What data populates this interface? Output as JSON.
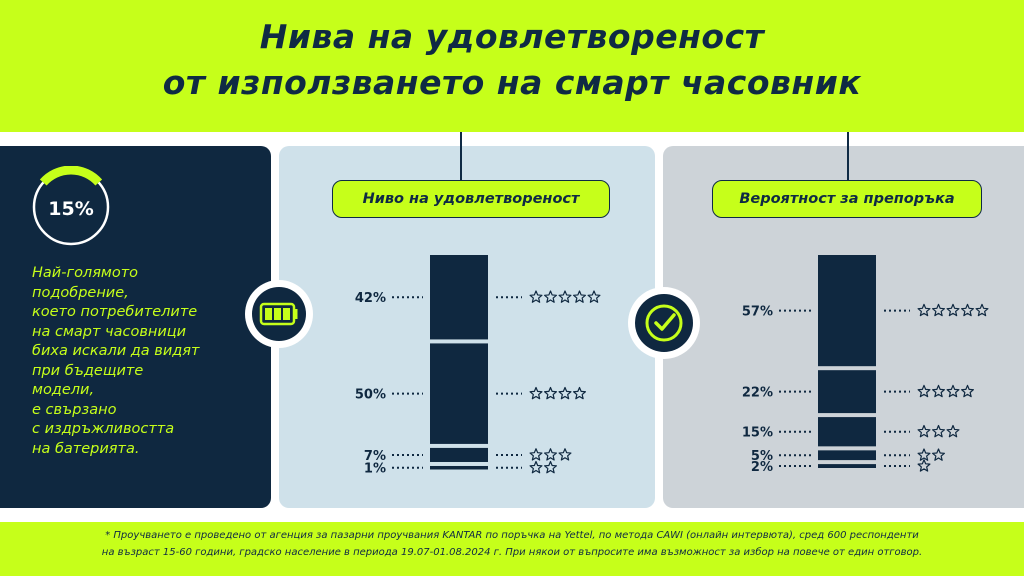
{
  "title": {
    "line1": "Нива на удовлетвореност",
    "line2": "от използването на смарт часовник"
  },
  "left": {
    "gauge_value": "15%",
    "gauge_fraction": 0.15,
    "text_lines": [
      "Най-голямото",
      "подобрение,",
      "което потребителите",
      "на смарт часовници",
      "биха искали да видят",
      "при бъдещите",
      "модели,",
      "е свързано",
      "с издръжливостта",
      "на батерията."
    ]
  },
  "colors": {
    "navy": "#0f2840",
    "lime": "#c6ff1a",
    "light_blue": "#cfe1ea",
    "light_gray": "#cdd3d8"
  },
  "icons": {
    "middle": "battery-full-icon",
    "right": "check-circle-icon",
    "rating": "star-outline-icon"
  },
  "chart_data": [
    {
      "type": "bar",
      "orientation": "stacked-vertical",
      "title": "Ниво на удовлетвореност",
      "categories": [
        "5 stars",
        "4 stars",
        "3 stars",
        "2 stars"
      ],
      "stars": [
        5,
        4,
        3,
        2
      ],
      "values": [
        42,
        50,
        7,
        1
      ],
      "labels": [
        "42%",
        "50%",
        "7%",
        "1%"
      ],
      "unit": "%"
    },
    {
      "type": "bar",
      "orientation": "stacked-vertical",
      "title": "Вероятност за препоръка",
      "categories": [
        "5 stars",
        "4 stars",
        "3 stars",
        "2 stars",
        "1 star"
      ],
      "stars": [
        5,
        4,
        3,
        2,
        1
      ],
      "values": [
        57,
        22,
        15,
        5,
        2
      ],
      "labels": [
        "57%",
        "22%",
        "15%",
        "5%",
        "2%"
      ],
      "unit": "%"
    }
  ],
  "footnote": {
    "line1": "* Проучването е проведено от агенция за пазарни проучвания KANTAR по поръчка на Yettel, по метода CAWI (онлайн интервюта), сред 600 респонденти",
    "line2": "на възраст 15-60 години, градско население в периода 19.07-01.08.2024 г. При някои от въпросите има възможност за избор на повече от един отговор."
  }
}
